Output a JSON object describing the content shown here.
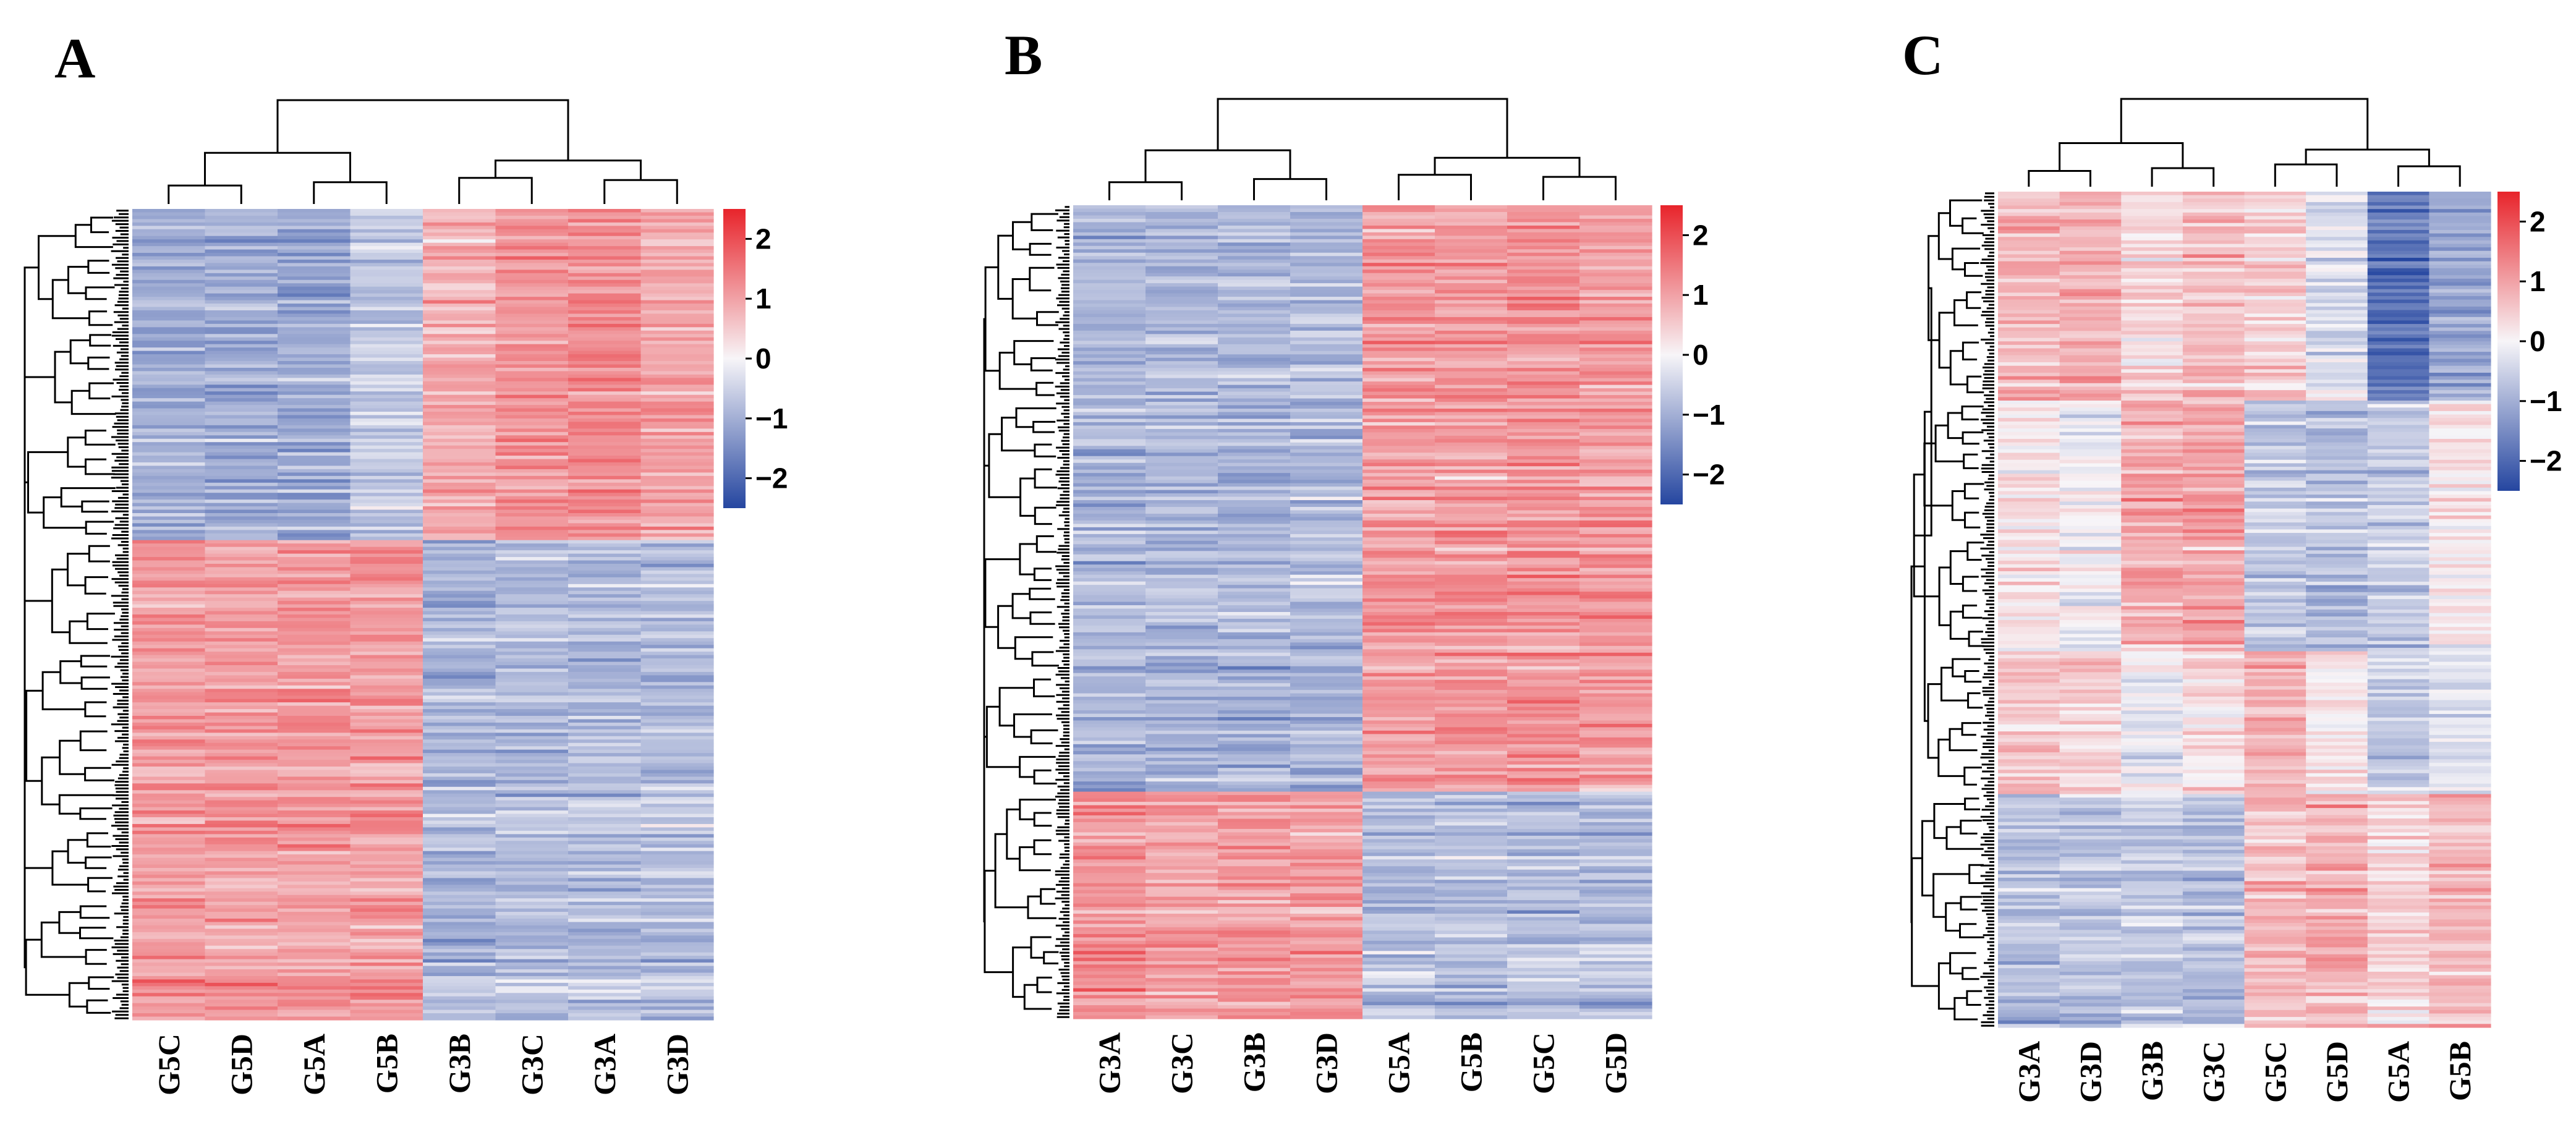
{
  "figure": {
    "palette": {
      "low": "#2546a0",
      "mid": "#f7f5f8",
      "high": "#e8242b"
    },
    "panels": [
      {
        "label": "A",
        "columns": [
          "G5C",
          "G5D",
          "G5A",
          "G5B",
          "G3B",
          "G3C",
          "G3A",
          "G3D"
        ],
        "clusters": [
          {
            "fraction": 0.41,
            "means": [
              -1.0,
              -1.0,
              -1.1,
              -0.6,
              0.9,
              1.2,
              1.3,
              1.0
            ]
          },
          {
            "fraction": 0.59,
            "means": [
              1.1,
              1.1,
              1.1,
              1.1,
              -0.9,
              -0.8,
              -0.8,
              -0.8
            ]
          }
        ],
        "colorbar_ticks": [
          "2",
          "1",
          "0",
          "−1",
          "−2"
        ]
      },
      {
        "label": "B",
        "columns": [
          "G3A",
          "G3C",
          "G3B",
          "G3D",
          "G5A",
          "G5B",
          "G5C",
          "G5D"
        ],
        "clusters": [
          {
            "fraction": 0.72,
            "means": [
              -0.9,
              -0.9,
              -0.9,
              -0.9,
              1.1,
              1.1,
              1.2,
              1.1
            ]
          },
          {
            "fraction": 0.28,
            "means": [
              1.2,
              1.0,
              1.1,
              1.1,
              -0.8,
              -0.8,
              -0.8,
              -0.8
            ]
          }
        ],
        "colorbar_ticks": [
          "2",
          "1",
          "0",
          "−1",
          "−2"
        ]
      },
      {
        "label": "C",
        "columns": [
          "G3A",
          "G3D",
          "G3B",
          "G3C",
          "G5C",
          "G5D",
          "G5A",
          "G5B"
        ],
        "clusters": [
          {
            "fraction": 0.25,
            "means": [
              0.7,
              0.8,
              0.3,
              0.6,
              0.4,
              -0.4,
              -1.9,
              -1.2
            ]
          },
          {
            "fraction": 0.3,
            "means": [
              0.2,
              -0.1,
              0.9,
              1.0,
              -0.6,
              -0.8,
              -0.6,
              0.2
            ]
          },
          {
            "fraction": 0.17,
            "means": [
              0.6,
              0.5,
              -0.1,
              0.3,
              0.8,
              0.1,
              -0.6,
              -0.3
            ]
          },
          {
            "fraction": 0.28,
            "means": [
              -0.8,
              -0.7,
              -0.6,
              -0.8,
              0.7,
              0.8,
              0.4,
              0.7
            ]
          }
        ],
        "colorbar_ticks": [
          "2",
          "1",
          "0",
          "−1",
          "−2"
        ]
      }
    ]
  },
  "chart_data": [
    {
      "type": "heatmap",
      "title": "A",
      "columns": [
        "G5C",
        "G5D",
        "G5A",
        "G5B",
        "G3B",
        "G3C",
        "G3A",
        "G3D"
      ],
      "color_scale": {
        "min": -2.5,
        "max": 2.5,
        "ticks": [
          2,
          1,
          0,
          -1,
          -2
        ]
      },
      "row_dendrogram": true,
      "column_dendrogram": true
    },
    {
      "type": "heatmap",
      "title": "B",
      "columns": [
        "G3A",
        "G3C",
        "G3B",
        "G3D",
        "G5A",
        "G5B",
        "G5C",
        "G5D"
      ],
      "color_scale": {
        "min": -2.5,
        "max": 2.5,
        "ticks": [
          2,
          1,
          0,
          -1,
          -2
        ]
      },
      "row_dendrogram": true,
      "column_dendrogram": true
    },
    {
      "type": "heatmap",
      "title": "C",
      "columns": [
        "G3A",
        "G3D",
        "G3B",
        "G3C",
        "G5C",
        "G5D",
        "G5A",
        "G5B"
      ],
      "color_scale": {
        "min": -2.5,
        "max": 2.5,
        "ticks": [
          2,
          1,
          0,
          -1,
          -2
        ]
      },
      "row_dendrogram": true,
      "column_dendrogram": true
    }
  ]
}
